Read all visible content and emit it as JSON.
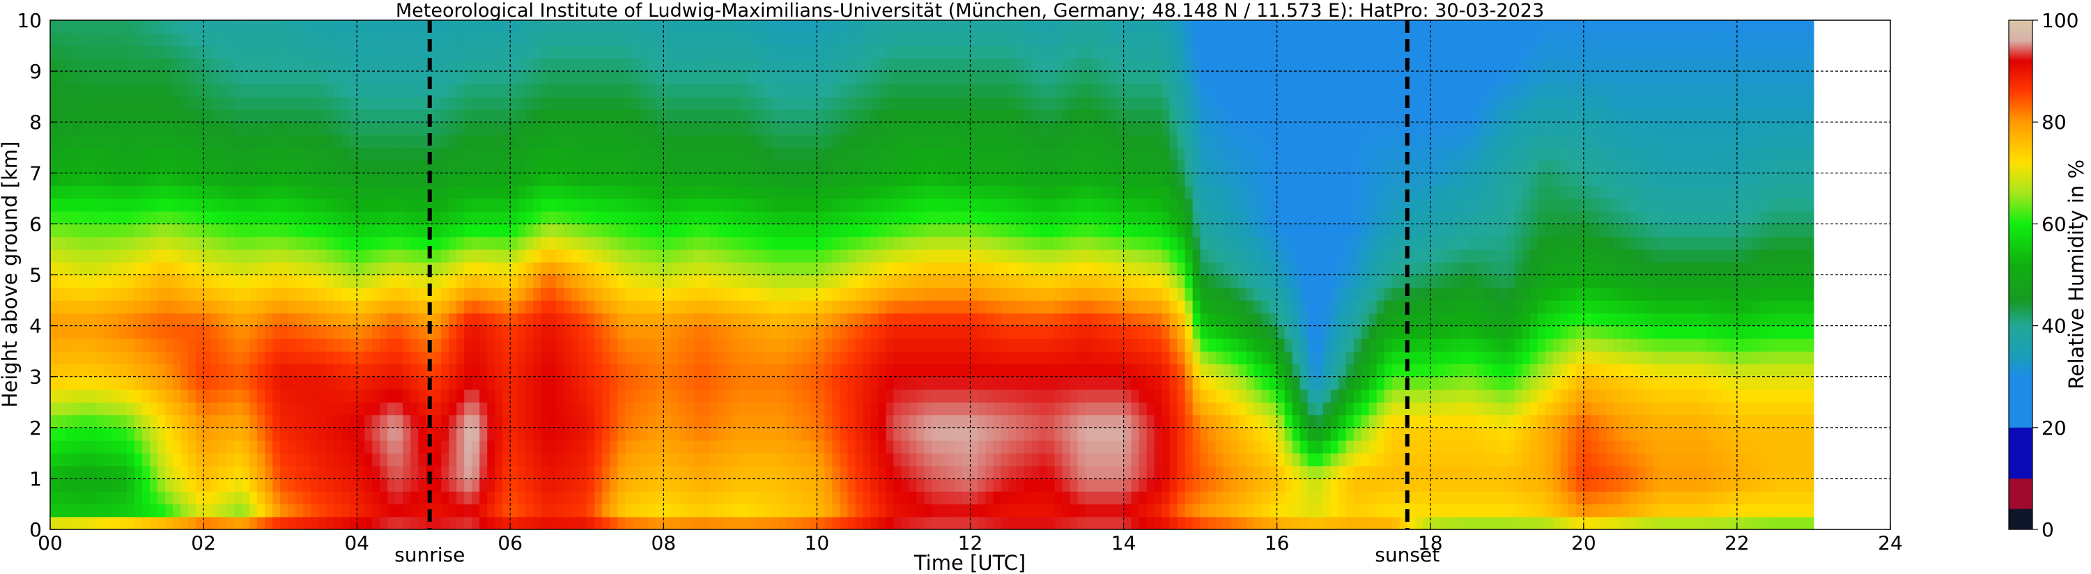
{
  "chart_data": {
    "type": "heatmap",
    "title": "Meteorological Institute of Ludwig-Maximilians-Universität (München, Germany; 48.148 N / 11.573 E):    HatPro: 30-03-2023",
    "xlabel": "Time [UTC]",
    "ylabel": "Height above ground [km]",
    "xlim": [
      0,
      24
    ],
    "ylim": [
      0,
      10
    ],
    "x_ticks": [
      "00",
      "02",
      "04",
      "06",
      "08",
      "10",
      "12",
      "14",
      "16",
      "18",
      "20",
      "22",
      "24"
    ],
    "y_ticks": [
      "0",
      "1",
      "2",
      "3",
      "4",
      "5",
      "6",
      "7",
      "8",
      "9",
      "10"
    ],
    "grid": true,
    "data_end_hour": 23.0,
    "markers": [
      {
        "label": "sunrise",
        "x": 4.95
      },
      {
        "label": "sunset",
        "x": 17.7
      }
    ],
    "colorbar": {
      "label": "Relative Humidity in %",
      "range": [
        0,
        100
      ],
      "ticks": [
        "0",
        "20",
        "40",
        "60",
        "80",
        "100"
      ],
      "stops": [
        {
          "v": 0,
          "color": "#10162a"
        },
        {
          "v": 4,
          "color": "#10162a"
        },
        {
          "v": 4.01,
          "color": "#a00a2e"
        },
        {
          "v": 10,
          "color": "#a00a2e"
        },
        {
          "v": 10.01,
          "color": "#0a0ab9"
        },
        {
          "v": 20,
          "color": "#0a0ab9"
        },
        {
          "v": 20.01,
          "color": "#1e8ce6"
        },
        {
          "v": 30,
          "color": "#1e8ce6"
        },
        {
          "v": 34,
          "color": "#1a9eb8"
        },
        {
          "v": 40,
          "color": "#22a896"
        },
        {
          "v": 45,
          "color": "#169a22"
        },
        {
          "v": 52,
          "color": "#10b010"
        },
        {
          "v": 60,
          "color": "#10ee10"
        },
        {
          "v": 66,
          "color": "#a6e61c"
        },
        {
          "v": 72,
          "color": "#ffe000"
        },
        {
          "v": 80,
          "color": "#ff9a00"
        },
        {
          "v": 86,
          "color": "#ff3a00"
        },
        {
          "v": 92,
          "color": "#e00000"
        },
        {
          "v": 96,
          "color": "#d8b0a8"
        },
        {
          "v": 100,
          "color": "#d9c8a8"
        }
      ]
    },
    "rh_profile": {
      "heights_km": [
        0,
        0.3,
        1,
        2,
        3,
        4,
        5,
        6,
        7,
        8,
        9,
        10
      ],
      "columns": [
        {
          "t": 0.0,
          "rh": [
            80,
            55,
            52,
            62,
            75,
            80,
            72,
            63,
            50,
            45,
            45,
            42
          ]
        },
        {
          "t": 0.5,
          "rh": [
            82,
            55,
            50,
            60,
            74,
            80,
            70,
            62,
            52,
            46,
            44,
            42
          ]
        },
        {
          "t": 1.0,
          "rh": [
            85,
            56,
            52,
            62,
            76,
            82,
            72,
            62,
            50,
            46,
            44,
            42
          ]
        },
        {
          "t": 1.5,
          "rh": [
            88,
            60,
            68,
            72,
            80,
            84,
            76,
            64,
            52,
            46,
            44,
            40
          ]
        },
        {
          "t": 2.0,
          "rh": [
            90,
            70,
            76,
            80,
            86,
            84,
            72,
            62,
            50,
            45,
            42,
            38
          ]
        },
        {
          "t": 2.5,
          "rh": [
            90,
            64,
            72,
            78,
            84,
            80,
            70,
            60,
            48,
            44,
            40,
            38
          ]
        },
        {
          "t": 3.0,
          "rh": [
            92,
            80,
            85,
            88,
            90,
            84,
            72,
            60,
            50,
            44,
            40,
            38
          ]
        },
        {
          "t": 3.5,
          "rh": [
            92,
            85,
            88,
            90,
            90,
            82,
            70,
            58,
            48,
            44,
            40,
            36
          ]
        },
        {
          "t": 4.0,
          "rh": [
            94,
            88,
            90,
            92,
            88,
            80,
            66,
            55,
            46,
            42,
            38,
            36
          ]
        },
        {
          "t": 4.5,
          "rh": [
            94,
            92,
            94,
            96,
            90,
            84,
            70,
            56,
            46,
            42,
            38,
            36
          ]
        },
        {
          "t": 5.0,
          "rh": [
            94,
            90,
            92,
            90,
            86,
            80,
            68,
            54,
            46,
            42,
            38,
            36
          ]
        },
        {
          "t": 5.5,
          "rh": [
            94,
            92,
            96,
            97,
            92,
            90,
            74,
            58,
            48,
            44,
            40,
            36
          ]
        },
        {
          "t": 6.0,
          "rh": [
            92,
            84,
            86,
            88,
            88,
            86,
            72,
            58,
            48,
            44,
            40,
            36
          ]
        },
        {
          "t": 6.5,
          "rh": [
            92,
            88,
            90,
            92,
            92,
            90,
            82,
            64,
            52,
            46,
            42,
            38
          ]
        },
        {
          "t": 7.0,
          "rh": [
            92,
            86,
            88,
            90,
            88,
            86,
            76,
            62,
            50,
            46,
            42,
            38
          ]
        },
        {
          "t": 7.5,
          "rh": [
            88,
            74,
            78,
            82,
            84,
            80,
            70,
            60,
            50,
            46,
            42,
            38
          ]
        },
        {
          "t": 8.0,
          "rh": [
            86,
            72,
            76,
            80,
            82,
            80,
            68,
            58,
            48,
            44,
            40,
            36
          ]
        },
        {
          "t": 8.5,
          "rh": [
            86,
            74,
            78,
            82,
            84,
            82,
            70,
            60,
            48,
            44,
            40,
            36
          ]
        },
        {
          "t": 9.0,
          "rh": [
            86,
            72,
            76,
            80,
            82,
            80,
            68,
            58,
            48,
            44,
            40,
            36
          ]
        },
        {
          "t": 9.5,
          "rh": [
            86,
            74,
            76,
            80,
            82,
            78,
            66,
            56,
            46,
            42,
            38,
            34
          ]
        },
        {
          "t": 10.0,
          "rh": [
            88,
            76,
            78,
            82,
            84,
            80,
            66,
            56,
            46,
            42,
            38,
            34
          ]
        },
        {
          "t": 10.5,
          "rh": [
            90,
            84,
            86,
            88,
            88,
            84,
            70,
            58,
            48,
            44,
            40,
            36
          ]
        },
        {
          "t": 11.0,
          "rh": [
            94,
            90,
            92,
            94,
            92,
            88,
            74,
            60,
            50,
            46,
            42,
            38
          ]
        },
        {
          "t": 11.5,
          "rh": [
            94,
            92,
            94,
            96,
            92,
            88,
            76,
            62,
            52,
            46,
            42,
            38
          ]
        },
        {
          "t": 12.0,
          "rh": [
            94,
            92,
            95,
            96,
            92,
            88,
            76,
            62,
            50,
            46,
            42,
            38
          ]
        },
        {
          "t": 12.5,
          "rh": [
            94,
            90,
            93,
            95,
            92,
            86,
            74,
            60,
            50,
            46,
            42,
            38
          ]
        },
        {
          "t": 13.0,
          "rh": [
            94,
            90,
            92,
            94,
            92,
            86,
            72,
            58,
            48,
            44,
            40,
            36
          ]
        },
        {
          "t": 13.5,
          "rh": [
            94,
            92,
            95,
            96,
            92,
            88,
            74,
            60,
            50,
            46,
            42,
            38
          ]
        },
        {
          "t": 14.0,
          "rh": [
            94,
            92,
            95,
            96,
            92,
            86,
            72,
            58,
            48,
            44,
            40,
            36
          ]
        },
        {
          "t": 14.5,
          "rh": [
            92,
            88,
            92,
            92,
            90,
            84,
            70,
            56,
            48,
            44,
            40,
            36
          ]
        },
        {
          "t": 14.8,
          "rh": [
            90,
            82,
            86,
            86,
            84,
            76,
            62,
            50,
            42,
            38,
            34,
            32
          ]
        },
        {
          "t": 15.0,
          "rh": [
            88,
            80,
            84,
            82,
            72,
            56,
            44,
            38,
            34,
            32,
            30,
            28
          ]
        },
        {
          "t": 15.5,
          "rh": [
            86,
            76,
            80,
            76,
            66,
            50,
            40,
            34,
            32,
            30,
            28,
            26
          ]
        },
        {
          "t": 16.0,
          "rh": [
            82,
            72,
            76,
            70,
            56,
            42,
            34,
            30,
            30,
            30,
            28,
            26
          ]
        },
        {
          "t": 16.5,
          "rh": [
            80,
            70,
            68,
            44,
            30,
            28,
            28,
            28,
            30,
            30,
            28,
            22
          ]
        },
        {
          "t": 17.0,
          "rh": [
            80,
            74,
            76,
            62,
            46,
            38,
            32,
            30,
            30,
            30,
            28,
            26
          ]
        },
        {
          "t": 17.5,
          "rh": [
            80,
            72,
            76,
            74,
            62,
            50,
            40,
            34,
            32,
            30,
            28,
            26
          ]
        },
        {
          "t": 18.0,
          "rh": [
            64,
            72,
            76,
            74,
            62,
            50,
            42,
            36,
            32,
            30,
            28,
            26
          ]
        },
        {
          "t": 18.5,
          "rh": [
            62,
            72,
            76,
            74,
            64,
            52,
            44,
            38,
            34,
            30,
            28,
            26
          ]
        },
        {
          "t": 19.0,
          "rh": [
            62,
            72,
            76,
            72,
            60,
            48,
            42,
            40,
            38,
            34,
            30,
            28
          ]
        },
        {
          "t": 19.5,
          "rh": [
            62,
            74,
            78,
            78,
            68,
            58,
            48,
            44,
            42,
            36,
            32,
            30
          ]
        },
        {
          "t": 20.0,
          "rh": [
            66,
            80,
            86,
            84,
            76,
            62,
            50,
            44,
            40,
            36,
            32,
            30
          ]
        },
        {
          "t": 20.5,
          "rh": [
            64,
            78,
            84,
            80,
            74,
            60,
            48,
            42,
            38,
            34,
            32,
            30
          ]
        },
        {
          "t": 21.0,
          "rh": [
            62,
            74,
            80,
            78,
            72,
            58,
            46,
            40,
            36,
            34,
            32,
            30
          ]
        },
        {
          "t": 21.5,
          "rh": [
            62,
            74,
            80,
            78,
            72,
            58,
            46,
            40,
            36,
            34,
            32,
            30
          ]
        },
        {
          "t": 22.0,
          "rh": [
            62,
            72,
            78,
            76,
            70,
            56,
            46,
            40,
            36,
            34,
            32,
            30
          ]
        },
        {
          "t": 22.5,
          "rh": [
            60,
            72,
            76,
            76,
            70,
            58,
            48,
            42,
            38,
            34,
            32,
            30
          ]
        },
        {
          "t": 23.0,
          "rh": [
            60,
            72,
            76,
            76,
            70,
            58,
            48,
            42,
            38,
            34,
            32,
            30
          ]
        }
      ]
    }
  }
}
